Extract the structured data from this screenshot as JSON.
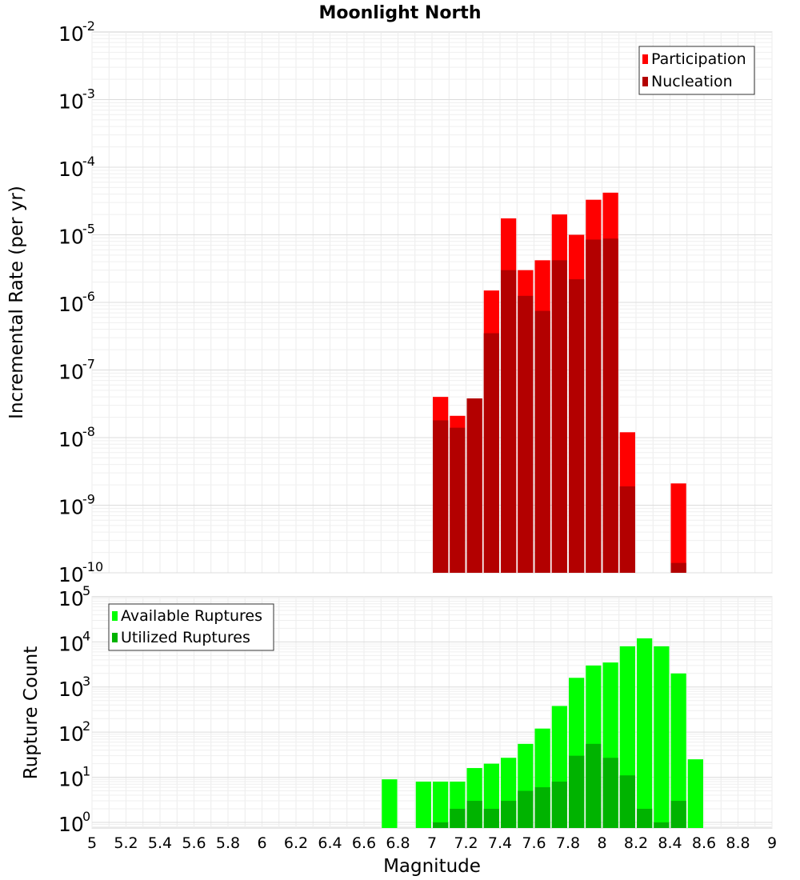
{
  "chart_data": {
    "title": "Moonlight North",
    "xlabel": "Magnitude",
    "xlim": [
      5,
      9
    ],
    "x_ticks": [
      "5",
      "5.2",
      "5.4",
      "5.6",
      "5.8",
      "6",
      "6.2",
      "6.4",
      "6.6",
      "6.8",
      "7",
      "7.2",
      "7.4",
      "7.6",
      "7.8",
      "8",
      "8.2",
      "8.4",
      "8.6",
      "8.8",
      "9"
    ],
    "panels": [
      {
        "type": "bar",
        "ylabel": "Incremental Rate (per yr)",
        "y_scale": "log",
        "ylim": [
          1e-10,
          0.01
        ],
        "y_tick_exponents": [
          "-10",
          "-9",
          "-8",
          "-7",
          "-6",
          "-5",
          "-4",
          "-3",
          "-2"
        ],
        "legend_position": "top-right",
        "colors": {
          "participation": "#ff0000",
          "nucleation": "#b30000"
        },
        "series": [
          {
            "name": "Participation",
            "x": [
              7.0,
              7.1,
              7.2,
              7.3,
              7.4,
              7.5,
              7.6,
              7.7,
              7.8,
              7.9,
              8.0,
              8.1,
              8.4
            ],
            "values": [
              4e-08,
              2.1e-08,
              3.8e-08,
              1.5e-06,
              1.75e-05,
              3e-06,
              4.2e-06,
              2e-05,
              1e-05,
              3.3e-05,
              4.2e-05,
              1.2e-08,
              2.1e-09
            ]
          },
          {
            "name": "Nucleation",
            "x": [
              7.0,
              7.1,
              7.2,
              7.3,
              7.4,
              7.5,
              7.6,
              7.7,
              7.8,
              7.9,
              8.0,
              8.1,
              8.4
            ],
            "values": [
              1.8e-08,
              1.4e-08,
              3.8e-08,
              3.5e-07,
              3e-06,
              1.25e-06,
              7.5e-07,
              4.2e-06,
              2.2e-06,
              8.5e-06,
              8.8e-06,
              1.9e-09,
              1.4e-10
            ]
          }
        ]
      },
      {
        "type": "bar",
        "ylabel": "Rupture Count",
        "y_scale": "log",
        "ylim": [
          0.75,
          100000.0
        ],
        "y_tick_exponents": [
          "0",
          "1",
          "2",
          "3",
          "4",
          "5"
        ],
        "legend_position": "top-left",
        "colors": {
          "available": "#00ff00",
          "utilized": "#00b300"
        },
        "series": [
          {
            "name": "Available Ruptures",
            "x": [
              6.7,
              6.9,
              7.0,
              7.1,
              7.2,
              7.3,
              7.4,
              7.5,
              7.6,
              7.7,
              7.8,
              7.9,
              8.0,
              8.1,
              8.2,
              8.3,
              8.4,
              8.5
            ],
            "values": [
              9,
              8,
              8,
              8,
              16,
              20,
              27,
              55,
              120,
              380,
              1600,
              3000,
              3500,
              8000,
              12000,
              8000,
              2000,
              25
            ]
          },
          {
            "name": "Utilized Ruptures",
            "x": [
              7.0,
              7.1,
              7.2,
              7.3,
              7.4,
              7.5,
              7.6,
              7.7,
              7.8,
              7.9,
              8.0,
              8.1,
              8.2,
              8.3,
              8.4
            ],
            "values": [
              1,
              2,
              3,
              2,
              3,
              5,
              6,
              8,
              30,
              55,
              27,
              11,
              2,
              1,
              3
            ]
          }
        ]
      }
    ]
  }
}
